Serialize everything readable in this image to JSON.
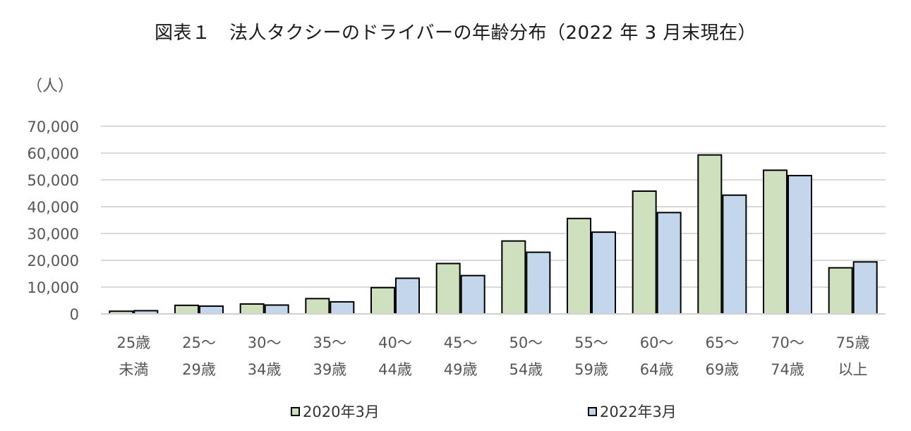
{
  "title": "図表１　法人タクシーのドライバーの年齢分布（2022 年 3 月末現在）",
  "y_unit_label": "（人）",
  "colors": {
    "series1": "#cfe0bf",
    "series2": "#c3d6ec",
    "border": "#000000",
    "grid": "#d9d9d9"
  },
  "chart_data": {
    "type": "bar",
    "title": "図表１　法人タクシーのドライバーの年齢分布（2022 年 3 月末現在）",
    "ylabel": "（人）",
    "xlabel": "",
    "ylim": [
      0,
      70000
    ],
    "yticks": [
      0,
      10000,
      20000,
      30000,
      40000,
      50000,
      60000,
      70000
    ],
    "ytick_labels": [
      "0",
      "10,000",
      "20,000",
      "30,000",
      "40,000",
      "50,000",
      "60,000",
      "70,000"
    ],
    "grid": true,
    "legend_position": "bottom",
    "categories": [
      [
        "25歳",
        "未満"
      ],
      [
        "25～",
        "29歳"
      ],
      [
        "30～",
        "34歳"
      ],
      [
        "35～",
        "39歳"
      ],
      [
        "40～",
        "44歳"
      ],
      [
        "45～",
        "49歳"
      ],
      [
        "50～",
        "54歳"
      ],
      [
        "55～",
        "59歳"
      ],
      [
        "60～",
        "64歳"
      ],
      [
        "65～",
        "69歳"
      ],
      [
        "70～",
        "74歳"
      ],
      [
        "75歳",
        "以上"
      ]
    ],
    "series": [
      {
        "name": "2020年3月",
        "color": "#cfe0bf",
        "values": [
          1000,
          3200,
          3700,
          5700,
          9800,
          18800,
          27200,
          35600,
          45800,
          59300,
          53600,
          17200
        ]
      },
      {
        "name": "2022年3月",
        "color": "#c3d6ec",
        "values": [
          1200,
          2900,
          3300,
          4500,
          13300,
          14300,
          23000,
          30500,
          37800,
          44300,
          51600,
          19400
        ]
      }
    ]
  }
}
